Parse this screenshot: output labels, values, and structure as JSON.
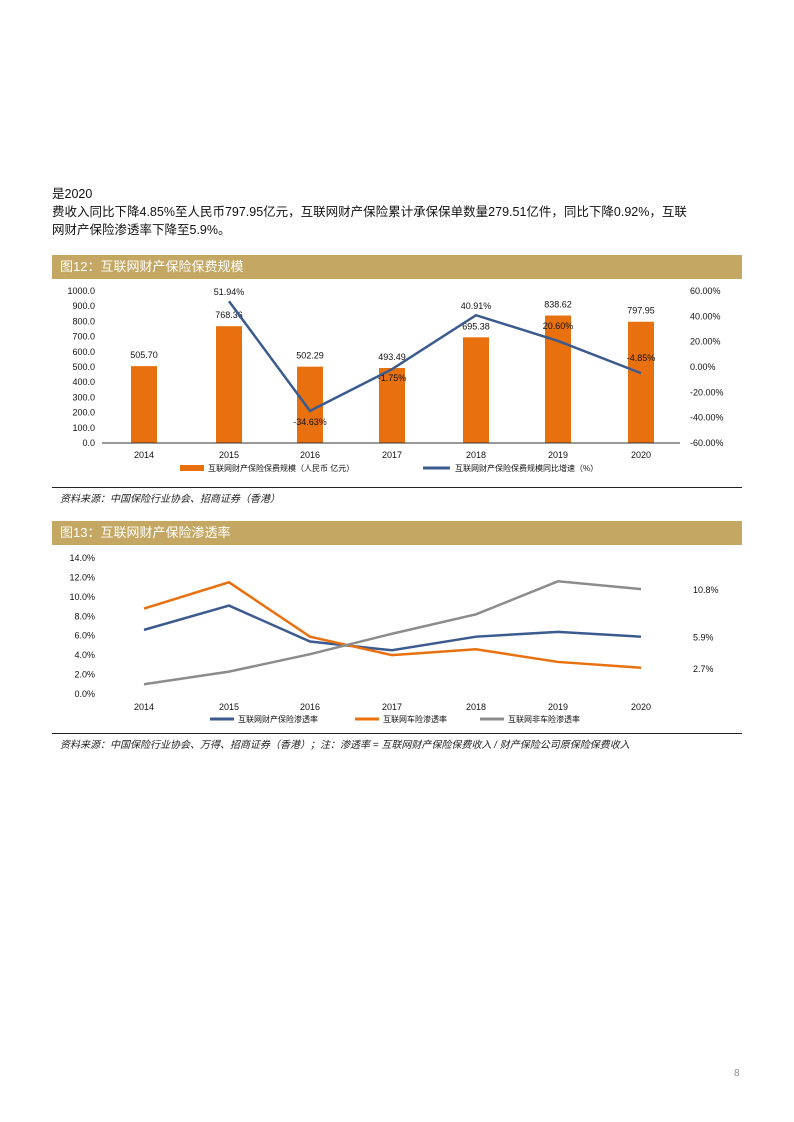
{
  "body": {
    "line1": "是2020",
    "line2": "费收入同比下降4.85%至人民币797.95亿元，互联网财产保险累计承保保单数量279.51亿件，同比下降0.92%，互联",
    "line3": "网财产保险渗透率下降至5.9%。"
  },
  "fig12": {
    "title": "图12：互联网财产保险保费规模",
    "source": "资料来源：中国保险行业协会、招商证券（香港）"
  },
  "fig13": {
    "title": "图13：互联网财产保险渗透率",
    "source": "资料来源：中国保险行业协会、万得、招商证券（香港）；注：渗透率 = 互联网财产保险保费收入 / 财产保险公司原保险保费收入"
  },
  "page_number": "8",
  "chart_data": [
    {
      "type": "bar+line",
      "categories": [
        "2014",
        "2015",
        "2016",
        "2017",
        "2018",
        "2019",
        "2020"
      ],
      "series": [
        {
          "name": "互联网财产保险保费规模（人民币 亿元）",
          "type": "bar",
          "axis": "left",
          "color": "#e8700f",
          "values": [
            505.7,
            768.36,
            502.29,
            493.49,
            695.38,
            838.62,
            797.95
          ],
          "labels": [
            "505.70",
            "768.36",
            "502.29",
            "493.49",
            "695.38",
            "838.62",
            "797.95"
          ]
        },
        {
          "name": "互联网财产保险保费规模同比增速（%）",
          "type": "line",
          "axis": "right",
          "color": "#3b5b8f",
          "values": [
            null,
            51.94,
            -34.63,
            -1.75,
            40.91,
            20.6,
            -4.85
          ],
          "labels": [
            "",
            "51.94%",
            "-34.63%",
            "-1.75%",
            "40.91%",
            "20.60%",
            "-4.85%"
          ]
        }
      ],
      "yleft": {
        "lim": [
          0,
          1000
        ],
        "ticks": [
          "0.0",
          "100.0",
          "200.0",
          "300.0",
          "400.0",
          "500.0",
          "600.0",
          "700.0",
          "800.0",
          "900.0",
          "1000.0"
        ]
      },
      "yright": {
        "lim": [
          -60,
          60
        ],
        "ticks": [
          "-60.00%",
          "-40.00%",
          "-20.00%",
          "0.00%",
          "20.00%",
          "40.00%",
          "60.00%"
        ]
      },
      "legend": "bottom",
      "grid": false
    },
    {
      "type": "line",
      "categories": [
        "2014",
        "2015",
        "2016",
        "2017",
        "2018",
        "2019",
        "2020"
      ],
      "series": [
        {
          "name": "互联网财产保险渗透率",
          "color": "#3b5b8f",
          "values": [
            6.6,
            9.1,
            5.4,
            4.5,
            5.9,
            6.4,
            5.9
          ],
          "end_label": "5.9%"
        },
        {
          "name": "互联网车险渗透率",
          "color": "#e8700f",
          "values": [
            8.8,
            11.5,
            5.9,
            4.0,
            4.6,
            3.3,
            2.7
          ],
          "end_label": "2.7%"
        },
        {
          "name": "互联网非车险渗透率",
          "color": "#8c8c8c",
          "values": [
            1.0,
            2.3,
            4.1,
            6.2,
            8.2,
            11.6,
            10.8
          ],
          "end_label": "10.8%"
        }
      ],
      "y": {
        "lim": [
          0,
          14
        ],
        "ticks": [
          "0.0%",
          "2.0%",
          "4.0%",
          "6.0%",
          "8.0%",
          "10.0%",
          "12.0%",
          "14.0%"
        ]
      },
      "legend": "bottom",
      "grid": false
    }
  ]
}
